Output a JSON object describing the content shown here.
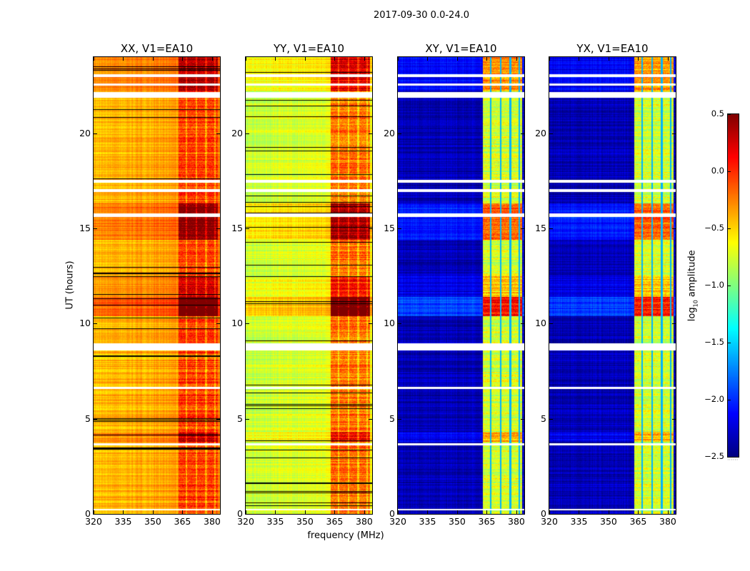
{
  "chart_data": {
    "type": "heatmap",
    "title": "2017-09-30 0.0-24.0",
    "xlabel": "frequency (MHz)",
    "ylabel": "UT (hours)",
    "xlim": [
      320,
      384
    ],
    "ylim": [
      0,
      24
    ],
    "xticks": [
      320,
      335,
      350,
      365,
      380
    ],
    "yticks": [
      0,
      5,
      10,
      15,
      20
    ],
    "colorbar": {
      "label_prefix": "log",
      "label_sub": "10",
      "label_suffix": " amplitude",
      "colormap": "jet",
      "range": [
        -2.5,
        0.5
      ],
      "ticks": [
        "0.5",
        "0.0",
        "−0.5",
        "−1.0",
        "−1.5",
        "−2.0",
        "−2.5"
      ],
      "tick_values": [
        0.5,
        0.0,
        -0.5,
        -1.0,
        -1.5,
        -2.0,
        -2.5
      ]
    },
    "rfi_band_mhz": [
      363,
      383
    ],
    "subband_gaps_mhz": [
      367,
      372,
      377,
      381.5
    ],
    "flagged_hours": [
      [
        22.95,
        23.1
      ],
      [
        22.5,
        22.62
      ],
      [
        21.85,
        22.15
      ],
      [
        17.4,
        17.55
      ],
      [
        16.9,
        17.05
      ],
      [
        15.6,
        15.8
      ],
      [
        8.6,
        8.95
      ],
      [
        6.55,
        6.68
      ],
      [
        3.6,
        3.72
      ],
      [
        0.2,
        0.28
      ]
    ],
    "events": [
      {
        "start": 22.2,
        "end": 24.0,
        "boost": 0.35
      },
      {
        "start": 14.4,
        "end": 16.3,
        "boost": 0.5
      },
      {
        "start": 10.4,
        "end": 11.4,
        "boost": 0.7
      },
      {
        "start": 11.4,
        "end": 12.5,
        "boost": 0.25
      },
      {
        "start": 3.8,
        "end": 4.3,
        "boost": 0.3
      }
    ],
    "panels": [
      {
        "title": "XX, V1=EA10",
        "background_level": -0.45,
        "band_level": -0.05,
        "cross": false
      },
      {
        "title": "YY, V1=EA10",
        "background_level": -0.8,
        "band_level": -0.2,
        "cross": false
      },
      {
        "title": "XY, V1=EA10",
        "background_level": -2.35,
        "band_level": -0.75,
        "cross": true
      },
      {
        "title": "YX, V1=EA10",
        "background_level": -2.35,
        "band_level": -0.75,
        "cross": true
      }
    ]
  }
}
